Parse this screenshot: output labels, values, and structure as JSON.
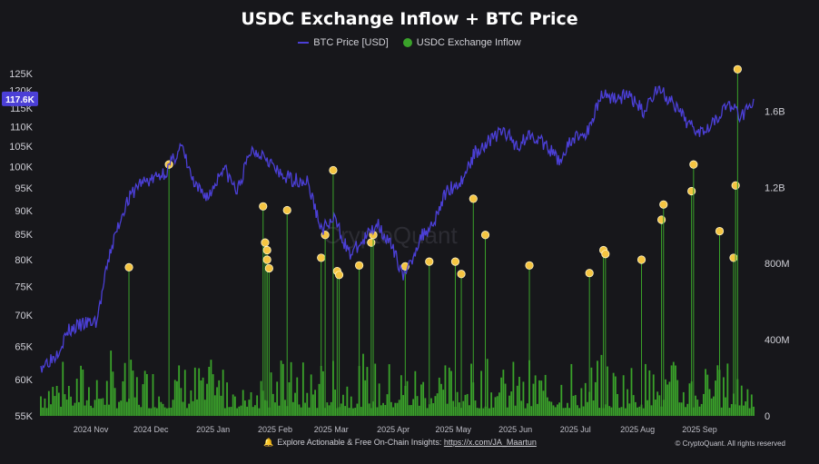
{
  "header": {
    "title": "USDC Exchange Inflow + BTC Price"
  },
  "legend": {
    "btc_label": "BTC Price [USD]",
    "inflow_label": "USDC Exchange Inflow"
  },
  "watermark": "CryptoQuant",
  "footer": {
    "prefix": "Explore Actionable & Free On-Chain Insights: ",
    "link": "https://x.com/JA_Maartun",
    "copyright": "© CryptoQuant. All rights reserved"
  },
  "colors": {
    "background": "#17171b",
    "btc_line": "#4b3fd6",
    "inflow_bar": "#3aa22a",
    "highlight_dot": "#f5c542",
    "badge": "#4b3fd6"
  },
  "chart_data": {
    "type": "bar+line",
    "title": "USDC Exchange Inflow + BTC Price",
    "left_axis": {
      "label": "",
      "scale": "log",
      "ylim": [
        55000,
        128000
      ],
      "ticks": [
        55000,
        60000,
        65000,
        70000,
        75000,
        80000,
        85000,
        90000,
        95000,
        100000,
        105000,
        110000,
        115000,
        120000,
        125000
      ],
      "tick_labels": [
        "55K",
        "60K",
        "65K",
        "70K",
        "75K",
        "80K",
        "85K",
        "90K",
        "95K",
        "100K",
        "105K",
        "110K",
        "115K",
        "120K",
        "125K"
      ]
    },
    "right_axis": {
      "label": "",
      "ylim": [
        0,
        1850000000
      ],
      "ticks": [
        0,
        400000000,
        800000000,
        1200000000,
        1600000000
      ],
      "tick_labels": [
        "0",
        "400M",
        "800M",
        "1.2B",
        "1.6B"
      ]
    },
    "x_axis": {
      "range": [
        "2024-10-07",
        "2025-09-28"
      ],
      "ticks": [
        "2024-11-01",
        "2024-12-01",
        "2025-01-01",
        "2025-02-01",
        "2025-03-01",
        "2025-04-01",
        "2025-05-01",
        "2025-06-01",
        "2025-07-01",
        "2025-08-01",
        "2025-09-01"
      ],
      "tick_labels": [
        "2024 Nov",
        "2024 Dec",
        "2025 Jan",
        "2025 Feb",
        "2025 Mar",
        "2025 Apr",
        "2025 May",
        "2025 Jun",
        "2025 Jul",
        "2025 Aug",
        "2025 Sep"
      ]
    },
    "current_price_label": "117.6K",
    "current_price": 117600,
    "series": [
      {
        "name": "BTC Price [USD]",
        "type": "line",
        "points": [
          [
            "2024-10-07",
            62000
          ],
          [
            "2024-10-14",
            63500
          ],
          [
            "2024-10-21",
            67500
          ],
          [
            "2024-10-28",
            68500
          ],
          [
            "2024-11-04",
            69000
          ],
          [
            "2024-11-11",
            82000
          ],
          [
            "2024-11-18",
            91000
          ],
          [
            "2024-11-25",
            96000
          ],
          [
            "2024-12-02",
            97000
          ],
          [
            "2024-12-09",
            99000
          ],
          [
            "2024-12-16",
            105000
          ],
          [
            "2024-12-23",
            95000
          ],
          [
            "2024-12-30",
            93000
          ],
          [
            "2025-01-06",
            100000
          ],
          [
            "2025-01-13",
            94000
          ],
          [
            "2025-01-20",
            104000
          ],
          [
            "2025-01-27",
            103000
          ],
          [
            "2025-02-03",
            98000
          ],
          [
            "2025-02-10",
            97000
          ],
          [
            "2025-02-17",
            96500
          ],
          [
            "2025-02-24",
            86000
          ],
          [
            "2025-03-03",
            88000
          ],
          [
            "2025-03-10",
            81000
          ],
          [
            "2025-03-17",
            83500
          ],
          [
            "2025-03-24",
            87500
          ],
          [
            "2025-03-31",
            82500
          ],
          [
            "2025-04-07",
            76500
          ],
          [
            "2025-04-14",
            84000
          ],
          [
            "2025-04-21",
            87500
          ],
          [
            "2025-04-28",
            94500
          ],
          [
            "2025-05-05",
            96500
          ],
          [
            "2025-05-12",
            103500
          ],
          [
            "2025-05-19",
            106500
          ],
          [
            "2025-05-26",
            109000
          ],
          [
            "2025-06-02",
            105000
          ],
          [
            "2025-06-09",
            108500
          ],
          [
            "2025-06-16",
            105000
          ],
          [
            "2025-06-23",
            101500
          ],
          [
            "2025-06-30",
            107000
          ],
          [
            "2025-07-07",
            108500
          ],
          [
            "2025-07-14",
            119000
          ],
          [
            "2025-07-21",
            118000
          ],
          [
            "2025-07-28",
            118500
          ],
          [
            "2025-08-04",
            114000
          ],
          [
            "2025-08-11",
            121000
          ],
          [
            "2025-08-18",
            116500
          ],
          [
            "2025-08-25",
            111500
          ],
          [
            "2025-09-01",
            109000
          ],
          [
            "2025-09-08",
            111500
          ],
          [
            "2025-09-15",
            116000
          ],
          [
            "2025-09-22",
            113000
          ],
          [
            "2025-09-28",
            117600
          ]
        ]
      },
      {
        "name": "USDC Exchange Inflow",
        "type": "bar",
        "note_values": "daily bars typically 60M-320M",
        "highlighted_spikes": [
          [
            "2024-11-20",
            780000000
          ],
          [
            "2024-12-10",
            1320000000
          ],
          [
            "2025-01-26",
            1100000000
          ],
          [
            "2025-01-27",
            910000000
          ],
          [
            "2025-01-28",
            870000000
          ],
          [
            "2025-01-28",
            820000000
          ],
          [
            "2025-01-29",
            775000000
          ],
          [
            "2025-02-07",
            1080000000
          ],
          [
            "2025-02-24",
            830000000
          ],
          [
            "2025-02-26",
            950000000
          ],
          [
            "2025-03-02",
            1290000000
          ],
          [
            "2025-03-04",
            760000000
          ],
          [
            "2025-03-05",
            740000000
          ],
          [
            "2025-03-15",
            790000000
          ],
          [
            "2025-03-21",
            910000000
          ],
          [
            "2025-03-22",
            950000000
          ],
          [
            "2025-04-07",
            785000000
          ],
          [
            "2025-04-19",
            810000000
          ],
          [
            "2025-05-02",
            810000000
          ],
          [
            "2025-05-05",
            745000000
          ],
          [
            "2025-05-11",
            1140000000
          ],
          [
            "2025-05-17",
            950000000
          ],
          [
            "2025-06-08",
            790000000
          ],
          [
            "2025-07-08",
            750000000
          ],
          [
            "2025-07-15",
            870000000
          ],
          [
            "2025-07-16",
            850000000
          ],
          [
            "2025-08-03",
            820000000
          ],
          [
            "2025-08-13",
            1030000000
          ],
          [
            "2025-08-14",
            1110000000
          ],
          [
            "2025-08-28",
            1180000000
          ],
          [
            "2025-08-29",
            1320000000
          ],
          [
            "2025-09-11",
            970000000
          ],
          [
            "2025-09-18",
            830000000
          ],
          [
            "2025-09-19",
            1210000000
          ],
          [
            "2025-09-20",
            1820000000
          ]
        ]
      }
    ],
    "grid": false,
    "legend_position": "top-center"
  }
}
